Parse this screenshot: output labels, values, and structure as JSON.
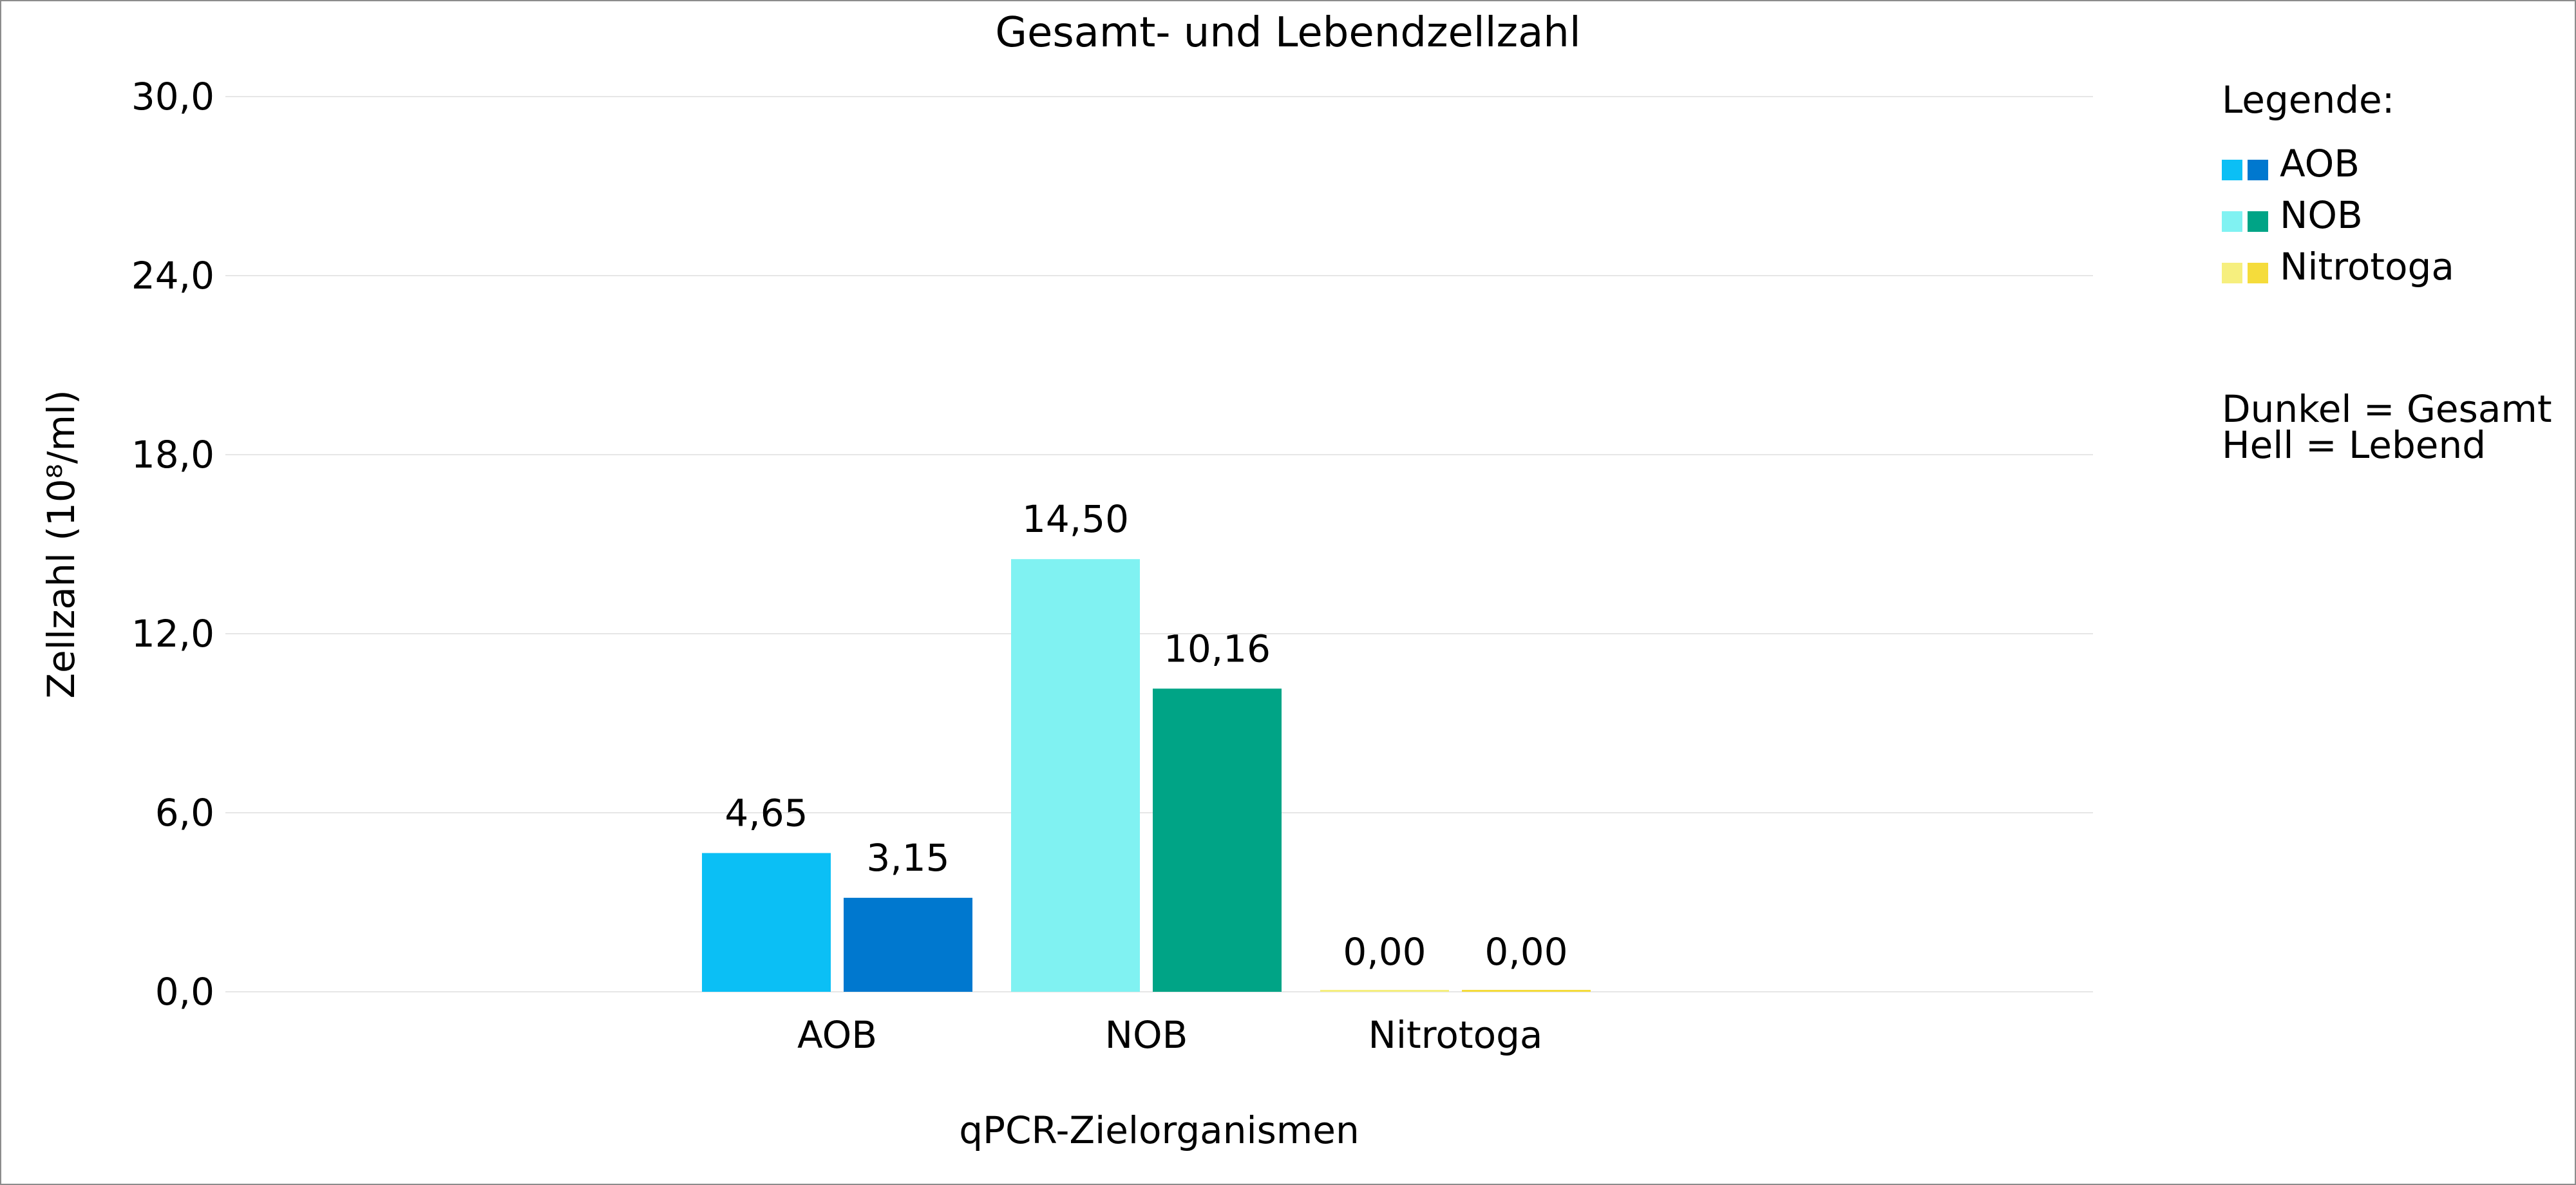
{
  "chart_data": {
    "type": "bar",
    "title": "Gesamt- und Lebendzellzahl",
    "xlabel": "qPCR-Zielorganismen",
    "ylabel": "Zellzahl (10⁸/ml)",
    "ylim": [
      0,
      30
    ],
    "yticks": [
      0,
      6,
      12,
      18,
      24,
      30
    ],
    "ytick_labels": [
      "0,0",
      "6,0",
      "12,0",
      "18,0",
      "24,0",
      "30,0"
    ],
    "grid": true,
    "categories": [
      "AOB",
      "NOB",
      "Nitrotoga"
    ],
    "bars": [
      {
        "category": "AOB",
        "kind": "Lebend",
        "value": 4.65,
        "label": "4,65",
        "color": "#0bbff5"
      },
      {
        "category": "AOB",
        "kind": "Gesamt",
        "value": 3.15,
        "label": "3,15",
        "color": "#0078cf"
      },
      {
        "category": "NOB",
        "kind": "Lebend",
        "value": 14.5,
        "label": "14,50",
        "color": "#80f2f2"
      },
      {
        "category": "NOB",
        "kind": "Gesamt",
        "value": 10.16,
        "label": "10,16",
        "color": "#00a486"
      },
      {
        "category": "Nitrotoga",
        "kind": "Lebend",
        "value": 0.0,
        "label": "0,00",
        "color": "#f6ef7e"
      },
      {
        "category": "Nitrotoga",
        "kind": "Gesamt",
        "value": 0.0,
        "label": "0,00",
        "color": "#f5dc3b"
      }
    ],
    "legend": {
      "placement": "right",
      "title": "Legende:",
      "entries": [
        {
          "label": "AOB",
          "light": "#0bbff5",
          "dark": "#0078cf"
        },
        {
          "label": "NOB",
          "light": "#80f2f2",
          "dark": "#00a486"
        },
        {
          "label": "Nitrotoga",
          "light": "#f6ef7e",
          "dark": "#f5dc3b"
        }
      ],
      "notes": [
        "Dunkel = Gesamt",
        "Hell = Lebend"
      ]
    },
    "colors": {
      "grid": "#e6e6e6",
      "border": "#8c8c8c"
    }
  }
}
